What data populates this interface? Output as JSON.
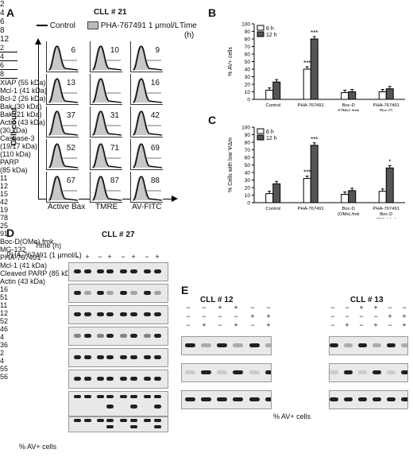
{
  "panelA": {
    "label": "A",
    "title": "CLL # 21",
    "legend_control": "Control",
    "legend_drug": "PHA-767491 1 μmol/L",
    "time_header": "Time",
    "time_unit": "(h)",
    "ylabel": "Cell count",
    "times": [
      "2",
      "4",
      "6",
      "8",
      "12"
    ],
    "rows": [
      [
        "6",
        "10",
        "9"
      ],
      [
        "13",
        "",
        "16"
      ],
      [
        "37",
        "31",
        "42"
      ],
      [
        "52",
        "71",
        "69"
      ],
      [
        "67",
        "87",
        "88"
      ]
    ],
    "columns": [
      "Active Bax",
      "TMRE",
      "AV-FITC"
    ]
  },
  "panelB": {
    "label": "B",
    "ylabel": "% AV+ cells"
  },
  "panelC": {
    "label": "C",
    "ylabel": "% Cells with low ΨΔm"
  },
  "chart_data": [
    {
      "type": "bar",
      "categories": [
        "Control",
        "PHA-767491",
        "Boc-D (OMe).fmk",
        "PHA-767491 Boc-D (OMe).fmk"
      ],
      "series": [
        {
          "name": "6 h",
          "values": [
            12,
            40,
            9,
            10
          ]
        },
        {
          "name": "12 h",
          "values": [
            23,
            80,
            10,
            14
          ]
        }
      ],
      "ylim": [
        0,
        100
      ],
      "yticks": [
        "0",
        "10",
        "20",
        "30",
        "40",
        "50",
        "60",
        "70",
        "80",
        "90",
        "100"
      ],
      "ylabel": "% AV+ cells",
      "significance": [
        "",
        "***",
        "",
        ""
      ],
      "significance_6h": [
        "",
        "***",
        "",
        ""
      ],
      "legend": "top-left"
    },
    {
      "type": "bar",
      "categories": [
        "Control",
        "PHA-767491",
        "Boc-D (OMe).fmk",
        "PHA-767491 Boc-D (OMe).fmk"
      ],
      "series": [
        {
          "name": "6 h",
          "values": [
            12,
            32,
            11,
            15
          ]
        },
        {
          "name": "12 h",
          "values": [
            25,
            76,
            16,
            46
          ]
        }
      ],
      "ylim": [
        0,
        100
      ],
      "yticks": [
        "0",
        "10",
        "20",
        "30",
        "40",
        "50",
        "60",
        "70",
        "80",
        "90",
        "100"
      ],
      "ylabel": "% Cells with low ΨΔm",
      "significance": [
        "",
        "***",
        "",
        "*"
      ],
      "significance_6h": [
        "",
        "***",
        "",
        ""
      ],
      "legend": "top-left"
    }
  ],
  "panelD": {
    "label": "D",
    "title": "CLL # 27",
    "time_label": "Time (h)",
    "drug_label": "PHA-767491 (1 μmol/L)",
    "times": [
      "2",
      "4",
      "6",
      "8"
    ],
    "signs": [
      "−",
      "+",
      "−",
      "+",
      "−",
      "+",
      "−",
      "+"
    ],
    "rows": [
      "XIAP (55 kDa)",
      "Mcl-1 (41 kDa)",
      "Bcl-2 (26 kDa)",
      "Bak (30 kDa)",
      "Bak (21 kDa)",
      "Actin (43 kDa)",
      "(30 kDa)",
      "Caspase-3",
      "(19/17 kDa)",
      "(110 kDa)",
      "PARP",
      "(85 kDa)",
      "Noxa (11 kDa)"
    ],
    "av_label": "% AV+ cells",
    "av_values": [
      "11",
      "12",
      "15",
      "42",
      "19",
      "78",
      "25",
      "91"
    ]
  },
  "panelE": {
    "label": "E",
    "title_left": "CLL # 12",
    "title_right": "CLL # 13",
    "treatments": [
      "Boc-D(OMe).fmk",
      "MG-132",
      "PHA-767491"
    ],
    "signs_boc": [
      "−",
      "−",
      "+",
      "+",
      "−",
      "−"
    ],
    "signs_mg": [
      "−",
      "−",
      "−",
      "−",
      "+",
      "+"
    ],
    "signs_pha": [
      "−",
      "+",
      "−",
      "+",
      "−",
      "+"
    ],
    "rows": [
      "Mcl-1 (41 kDa)",
      "Cleaved PARP (85 kDa)",
      "Actin (43 kDa)"
    ],
    "av_label": "% AV+ cells",
    "av_left": [
      "16",
      "51",
      "11",
      "12",
      "52",
      "46"
    ],
    "av_right": [
      "4",
      "36",
      "2",
      "4",
      "55",
      "56"
    ]
  }
}
